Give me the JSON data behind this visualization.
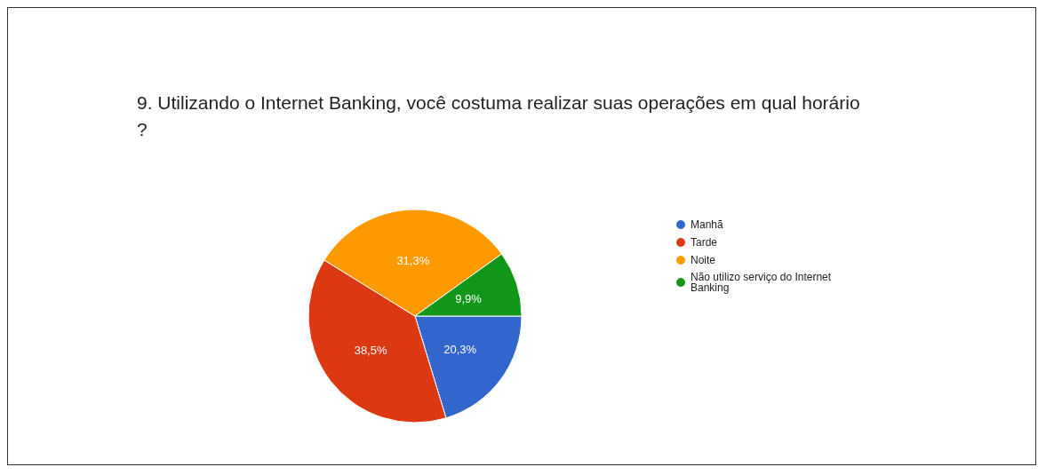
{
  "chart_data": {
    "type": "pie",
    "title": "9. Utilizando o Internet Banking, você costuma realizar suas operações em qual horário?",
    "categories": [
      "Manhã",
      "Tarde",
      "Noite",
      "Não utilizo serviço do Internet Banking"
    ],
    "values": [
      20.3,
      38.5,
      31.3,
      9.9
    ],
    "value_labels": [
      "20,3%",
      "38,5%",
      "31,3%",
      "9,9%"
    ],
    "colors": [
      "#3366cc",
      "#dc3912",
      "#ff9900",
      "#109618"
    ],
    "legend": "right"
  }
}
